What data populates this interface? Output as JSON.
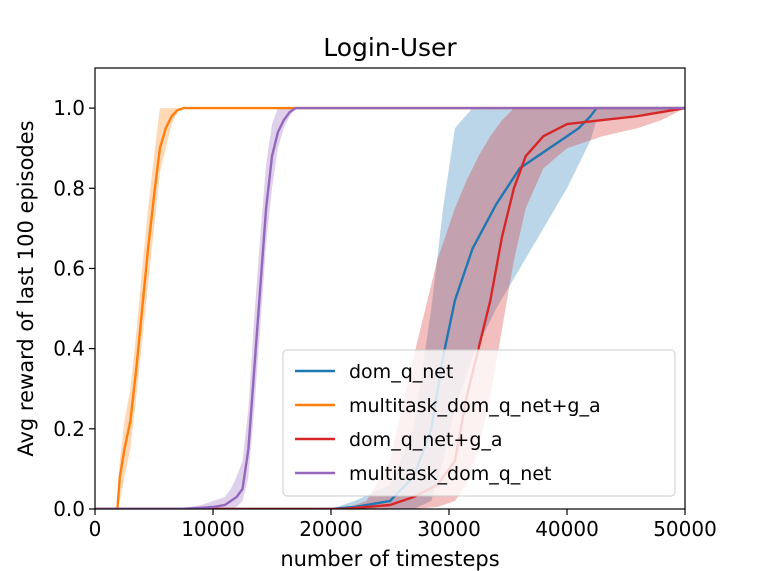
{
  "chart_data": {
    "type": "line",
    "title": "Login-User",
    "xlabel": "number of timesteps",
    "ylabel": "Avg reward of last 100 episodes",
    "xlim": [
      0,
      50000
    ],
    "ylim": [
      0,
      1.1
    ],
    "xticks": [
      0,
      10000,
      20000,
      30000,
      40000,
      50000
    ],
    "yticks": [
      0.0,
      0.2,
      0.4,
      0.6,
      0.8,
      1.0
    ],
    "xtick_labels": [
      "0",
      "10000",
      "20000",
      "30000",
      "40000",
      "50000"
    ],
    "ytick_labels": [
      "0.0",
      "0.2",
      "0.4",
      "0.6",
      "0.8",
      "1.0"
    ],
    "grid": false,
    "legend_position": "lower-right",
    "series": [
      {
        "name": "dom_q_net",
        "color": "#1f77b4",
        "x": [
          0,
          20000,
          22000,
          25000,
          27000,
          28500,
          29500,
          30500,
          32000,
          34000,
          36000,
          38000,
          40000,
          41000,
          42000,
          42500,
          50000
        ],
        "y": [
          0,
          0,
          0.005,
          0.02,
          0.08,
          0.2,
          0.38,
          0.52,
          0.65,
          0.76,
          0.85,
          0.89,
          0.93,
          0.95,
          0.98,
          1.0,
          1.0
        ],
        "lower": [
          0,
          0,
          0,
          0,
          0,
          0.02,
          0.12,
          0.25,
          0.38,
          0.5,
          0.6,
          0.7,
          0.8,
          0.86,
          0.92,
          0.97,
          1.0
        ],
        "upper": [
          0,
          0,
          0.02,
          0.06,
          0.2,
          0.5,
          0.75,
          0.95,
          1.0,
          1.0,
          1.0,
          1.0,
          1.0,
          1.0,
          1.0,
          1.0,
          1.0
        ]
      },
      {
        "name": "multitask_dom_q_net+g_a",
        "color": "#ff7f0e",
        "x": [
          0,
          1900,
          2100,
          2500,
          3000,
          3500,
          4000,
          4500,
          5000,
          5500,
          6000,
          6500,
          7000,
          7500,
          50000
        ],
        "y": [
          0,
          0,
          0.08,
          0.15,
          0.22,
          0.35,
          0.5,
          0.65,
          0.78,
          0.9,
          0.95,
          0.98,
          0.995,
          1.0,
          1.0
        ],
        "lower": [
          0,
          0,
          0.02,
          0.08,
          0.15,
          0.28,
          0.42,
          0.56,
          0.7,
          0.84,
          0.9,
          0.96,
          0.99,
          1.0,
          1.0
        ],
        "upper": [
          0,
          0,
          0.12,
          0.22,
          0.3,
          0.44,
          0.6,
          0.75,
          0.88,
          1.0,
          1.0,
          1.0,
          1.0,
          1.0,
          1.0
        ]
      },
      {
        "name": "dom_q_net+g_a",
        "color": "#d62728",
        "x": [
          0,
          21000,
          23000,
          25000,
          27000,
          29000,
          30500,
          31500,
          32500,
          33500,
          34500,
          35500,
          36500,
          38000,
          40000,
          43000,
          46000,
          48000,
          50000
        ],
        "y": [
          0,
          0,
          0.005,
          0.01,
          0.03,
          0.06,
          0.12,
          0.28,
          0.4,
          0.52,
          0.68,
          0.8,
          0.88,
          0.93,
          0.96,
          0.97,
          0.98,
          0.99,
          1.0
        ],
        "lower": [
          0,
          0,
          0,
          0,
          0,
          0.005,
          0.02,
          0.06,
          0.15,
          0.28,
          0.45,
          0.62,
          0.75,
          0.85,
          0.9,
          0.93,
          0.95,
          0.97,
          1.0
        ],
        "upper": [
          0,
          0,
          0.02,
          0.12,
          0.38,
          0.62,
          0.75,
          0.82,
          0.88,
          0.93,
          0.97,
          1.0,
          1.0,
          1.0,
          1.0,
          1.0,
          1.0,
          1.0,
          1.0
        ]
      },
      {
        "name": "multitask_dom_q_net",
        "color": "#9467bd",
        "x": [
          0,
          7000,
          9000,
          10000,
          11000,
          11500,
          12000,
          12500,
          13000,
          13500,
          14000,
          14500,
          15000,
          15500,
          16000,
          16500,
          17000,
          50000
        ],
        "y": [
          0,
          0,
          0.003,
          0.005,
          0.01,
          0.02,
          0.03,
          0.05,
          0.15,
          0.35,
          0.55,
          0.75,
          0.88,
          0.94,
          0.97,
          0.99,
          1.0,
          1.0
        ],
        "lower": [
          0,
          0,
          0,
          0,
          0,
          0,
          0.005,
          0.02,
          0.08,
          0.25,
          0.45,
          0.66,
          0.8,
          0.9,
          0.95,
          0.98,
          1.0,
          1.0
        ],
        "upper": [
          0,
          0,
          0.01,
          0.02,
          0.03,
          0.05,
          0.08,
          0.12,
          0.25,
          0.48,
          0.68,
          0.86,
          0.96,
          1.0,
          1.0,
          1.0,
          1.0,
          1.0
        ]
      }
    ]
  }
}
